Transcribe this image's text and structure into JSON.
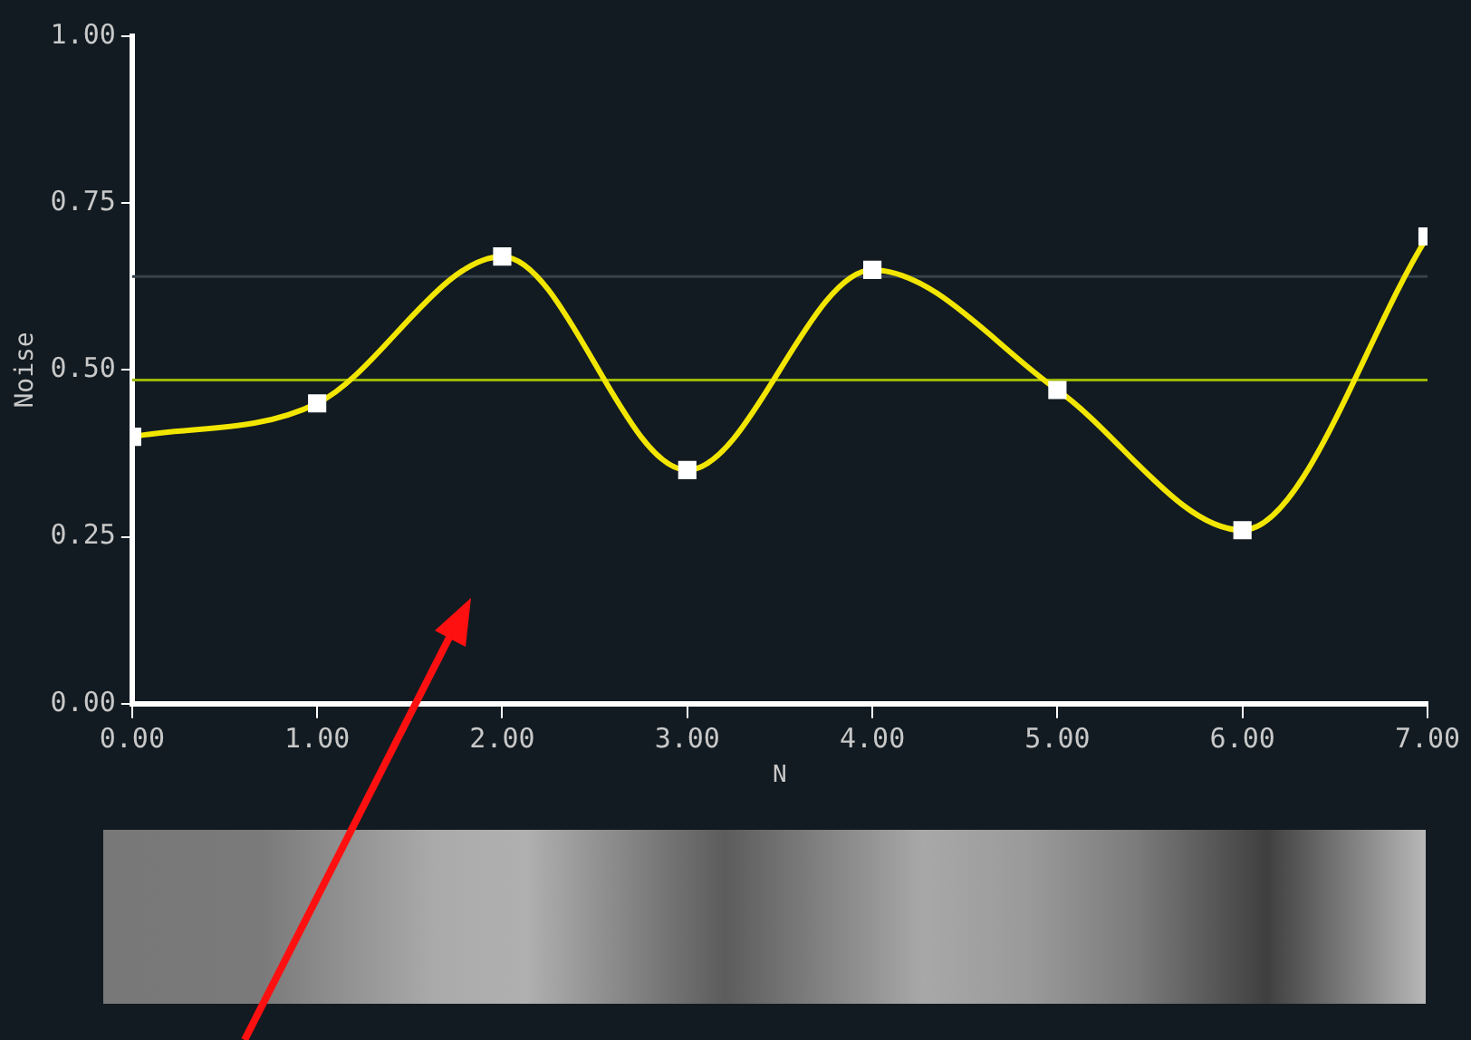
{
  "chart_data": {
    "type": "line",
    "xlabel": "N",
    "ylabel": "Noise",
    "x": [
      0,
      1,
      2,
      3,
      4,
      5,
      6,
      7
    ],
    "series": [
      {
        "color": "#f2e600",
        "values": [
          0.4,
          0.45,
          0.67,
          0.35,
          0.65,
          0.47,
          0.26,
          0.7
        ]
      }
    ],
    "xlim": [
      0,
      7
    ],
    "xticks": [
      {
        "value": 0,
        "label": "0.00"
      },
      {
        "value": 1,
        "label": "1.00"
      },
      {
        "value": 2,
        "label": "2.00"
      },
      {
        "value": 3,
        "label": "3.00"
      },
      {
        "value": 4,
        "label": "4.00"
      },
      {
        "value": 5,
        "label": "5.00"
      },
      {
        "value": 6,
        "label": "6.00"
      },
      {
        "value": 7,
        "label": "7.00"
      }
    ],
    "ylim": [
      0,
      1
    ],
    "yticks": [
      {
        "value": 0,
        "label": "0.00"
      },
      {
        "value": 0.25,
        "label": "0.25"
      },
      {
        "value": 0.5,
        "label": "0.50"
      },
      {
        "value": 0.75,
        "label": "0.75"
      },
      {
        "value": 1,
        "label": "1.00"
      }
    ],
    "ref_lines": [
      {
        "axis": "y",
        "value": 0.485,
        "color": "#9bb800"
      },
      {
        "axis": "y",
        "value": 0.64,
        "color": "#35414b"
      }
    ],
    "grid": false,
    "legend": false,
    "marker": "square",
    "line_style": "solid"
  }
}
